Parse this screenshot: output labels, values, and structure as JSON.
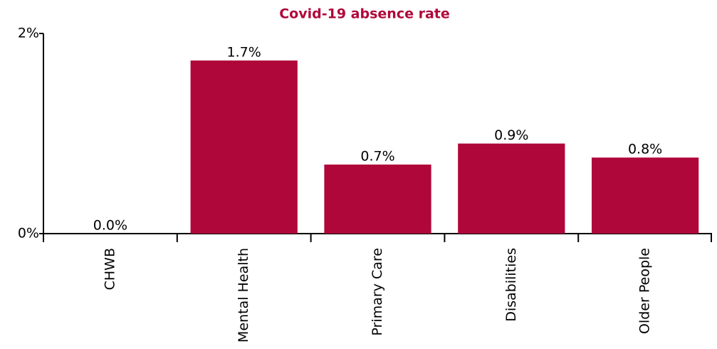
{
  "chart_data": {
    "type": "bar",
    "title": "Covid-19 absence rate",
    "categories": [
      "CHWB",
      "Mental Health",
      "Primary Care",
      "Disabilities",
      "Older People"
    ],
    "values": [
      0,
      1.73,
      0.69,
      0.9,
      0.76
    ],
    "value_labels": [
      "0.0%",
      "1.7%",
      "0.7%",
      "0.9%",
      "0.8%"
    ],
    "color": "#b0073a",
    "ylim": [
      0,
      2
    ],
    "yticks": [
      {
        "value": 0,
        "label": "0%"
      },
      {
        "value": 2,
        "label": "2%"
      }
    ]
  }
}
